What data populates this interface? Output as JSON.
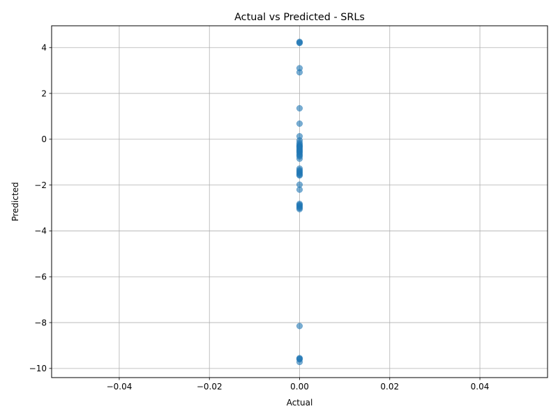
{
  "chart_data": {
    "type": "scatter",
    "title": "Actual vs Predicted - SRLs",
    "xlabel": "Actual",
    "ylabel": "Predicted",
    "xlim": [
      -0.055,
      0.055
    ],
    "ylim": [
      -10.4,
      4.95
    ],
    "xticks": [
      -0.04,
      -0.02,
      0.0,
      0.02,
      0.04
    ],
    "xtick_labels": [
      "−0.04",
      "−0.02",
      "0.00",
      "0.02",
      "0.04"
    ],
    "yticks": [
      -10,
      -8,
      -6,
      -4,
      -2,
      0,
      2,
      4
    ],
    "ytick_labels": [
      "−10",
      "−8",
      "−6",
      "−4",
      "−2",
      "0",
      "2",
      "4"
    ],
    "grid": true,
    "point_color": "#1f77b4",
    "point_alpha": 0.6,
    "series": [
      {
        "x": [
          0,
          0,
          0,
          0,
          0,
          0,
          0,
          0,
          0,
          0,
          0,
          0,
          0,
          0,
          0,
          0,
          0,
          0,
          0,
          0,
          0,
          0,
          0,
          0,
          0,
          0,
          0,
          0,
          0,
          0,
          0,
          0,
          0,
          0,
          0,
          0,
          0,
          0,
          0,
          0,
          0,
          0,
          0,
          0
        ],
        "y": [
          4.25,
          4.2,
          3.1,
          2.92,
          1.35,
          0.68,
          0.13,
          -0.05,
          -0.15,
          -0.22,
          -0.3,
          -0.36,
          -0.42,
          -0.5,
          -0.58,
          -0.65,
          -0.75,
          -0.85,
          -1.28,
          -1.35,
          -1.45,
          -1.5,
          -1.55,
          -1.98,
          -2.2,
          -2.82,
          -2.86,
          -2.9,
          -3.0,
          -3.05,
          -8.15,
          -9.55,
          -9.6,
          -9.72,
          -0.33,
          -0.46,
          -1.58,
          -2.95,
          -0.28,
          -0.55,
          -0.7,
          -1.4,
          -9.58,
          4.22
        ]
      }
    ]
  }
}
